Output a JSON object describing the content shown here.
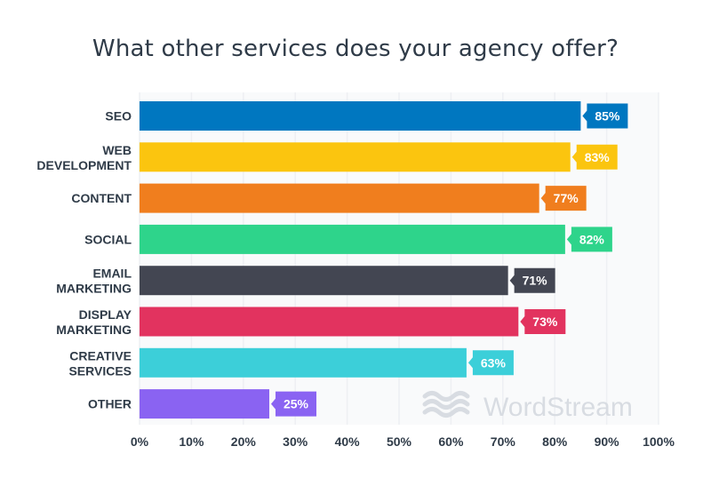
{
  "chart_data": {
    "type": "bar",
    "orientation": "horizontal",
    "title": "What other services does your agency offer?",
    "categories": [
      [
        "SEO"
      ],
      [
        "WEB",
        "DEVELOPMENT"
      ],
      [
        "CONTENT"
      ],
      [
        "SOCIAL"
      ],
      [
        "EMAIL",
        "MARKETING"
      ],
      [
        "DISPLAY",
        "MARKETING"
      ],
      [
        "CREATIVE",
        "SERVICES"
      ],
      [
        "OTHER"
      ]
    ],
    "values": [
      85,
      83,
      77,
      82,
      71,
      73,
      63,
      25
    ],
    "value_labels": [
      "85%",
      "83%",
      "77%",
      "82%",
      "71%",
      "73%",
      "63%",
      "25%"
    ],
    "colors": [
      "#0077c0",
      "#fbc50f",
      "#f07e1e",
      "#2ed48b",
      "#434652",
      "#e2335f",
      "#3ccfd9",
      "#8a63f2"
    ],
    "xlim": [
      0,
      100
    ],
    "xticks": [
      0,
      10,
      20,
      30,
      40,
      50,
      60,
      70,
      80,
      90,
      100
    ],
    "xtick_labels": [
      "0%",
      "10%",
      "20%",
      "30%",
      "40%",
      "50%",
      "60%",
      "70%",
      "80%",
      "90%",
      "100%"
    ],
    "grid": "vertical",
    "xlabel": "",
    "ylabel": ""
  },
  "watermark": {
    "text": "WordStream",
    "icon": "wordstream-waves-icon",
    "color": "#d8dce2"
  },
  "style": {
    "text_color": "#2f3b48",
    "grid_color": "#eef0f3",
    "plot_bg": "#f9fafb"
  }
}
